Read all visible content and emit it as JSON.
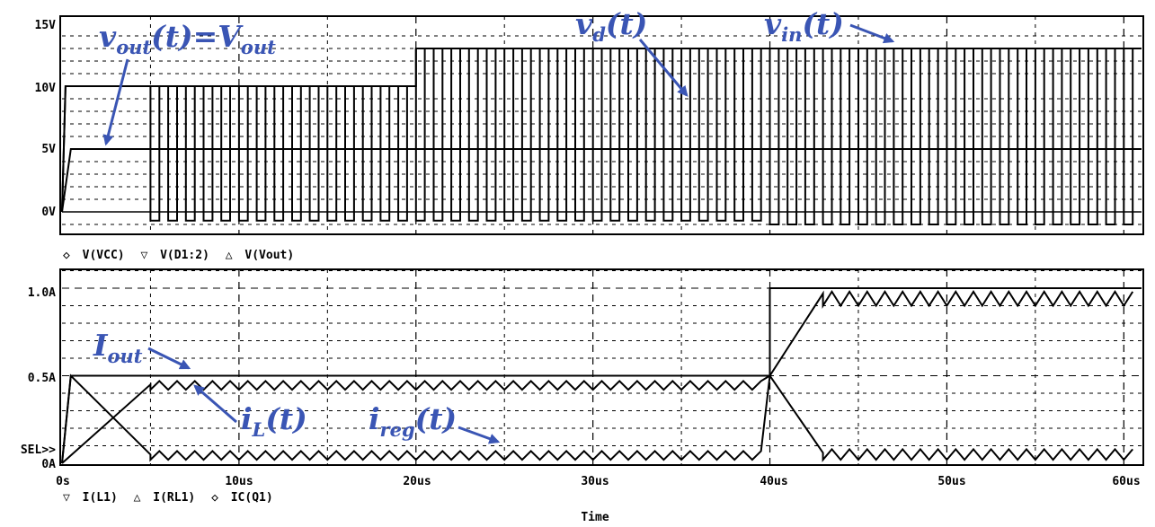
{
  "chart_data": [
    {
      "type": "line",
      "panel": "voltage",
      "x_unit": "us",
      "xlim": [
        0,
        61
      ],
      "ylim": [
        -2,
        15
      ],
      "y_ticks": [
        "15V",
        "10V",
        "5V",
        "0V"
      ],
      "y_tick_values": [
        15,
        10,
        5,
        0
      ],
      "legend": [
        {
          "marker": "◇",
          "label": "V(VCC)"
        },
        {
          "marker": "▽",
          "label": "V(D1:2)"
        },
        {
          "marker": "△",
          "label": "V(Vout)"
        }
      ],
      "series": [
        {
          "points": [
            [
              0,
              0
            ],
            [
              0.2,
              10
            ],
            [
              20,
              10
            ],
            [
              20,
              13
            ],
            [
              61,
              13
            ]
          ]
        },
        {
          "points": [
            [
              0,
              0
            ],
            [
              0.5,
              5
            ],
            [
              61,
              5
            ]
          ]
        },
        {
          "switching": {
            "t0": 5,
            "t1": 61,
            "period": 1,
            "duty": 0.5,
            "high_0_20": 10,
            "high_20_61": 13,
            "low_0_40": -0.7,
            "low_40_61": -1
          }
        }
      ],
      "annotations": [
        {
          "main": "v",
          "sub": "out",
          "mid": "(t)=",
          "main2": "V",
          "sub2": "out"
        },
        {
          "main": "v",
          "sub": "d",
          "tail": "(t)"
        },
        {
          "main": "v",
          "sub": "in",
          "tail": "(t)"
        }
      ]
    },
    {
      "type": "line",
      "panel": "current",
      "x_unit": "us",
      "xlim": [
        0,
        61
      ],
      "ylim": [
        0,
        1.1
      ],
      "y_ticks": [
        "1.0A",
        "0.5A",
        "0A"
      ],
      "y_tick_values": [
        1.0,
        0.5,
        0
      ],
      "sel_label": "SEL>>",
      "x_ticks": [
        "0s",
        "10us",
        "20us",
        "30us",
        "40us",
        "50us",
        "60us"
      ],
      "x_tick_values": [
        0,
        10,
        20,
        30,
        40,
        50,
        60
      ],
      "xlabel": "Time",
      "legend": [
        {
          "marker": "▽",
          "label": "I(L1)"
        },
        {
          "marker": "△",
          "label": "I(RL1)"
        },
        {
          "marker": "◇",
          "label": "IC(Q1)"
        }
      ],
      "series": [
        {
          "points": [
            [
              0,
              0
            ],
            [
              0.5,
              0.5
            ],
            [
              40,
              0.5
            ],
            [
              40,
              1.0
            ],
            [
              61,
              1.0
            ]
          ]
        },
        {
          "points": [
            [
              0,
              0
            ],
            [
              5,
              0.46
            ],
            [
              40,
              0.46
            ],
            [
              43,
              0.95
            ],
            [
              61,
              0.95
            ]
          ],
          "ripple": 0.05
        },
        {
          "points": [
            [
              0,
              0
            ],
            [
              0.5,
              0.5
            ],
            [
              5,
              0.04
            ],
            [
              40,
              0.04
            ],
            [
              40,
              0.5
            ],
            [
              43,
              0.05
            ],
            [
              61,
              0.05
            ]
          ],
          "ripple": 0.05
        }
      ],
      "annotations": [
        {
          "main": "I",
          "sub": "out"
        },
        {
          "main": "i",
          "sub": "L",
          "tail": "(t)"
        },
        {
          "main": "i",
          "sub": "reg",
          "tail": "(t)"
        }
      ]
    }
  ],
  "colors": {
    "trace": "#000000",
    "grid": "#000000",
    "annotation": "#3a55b4"
  }
}
